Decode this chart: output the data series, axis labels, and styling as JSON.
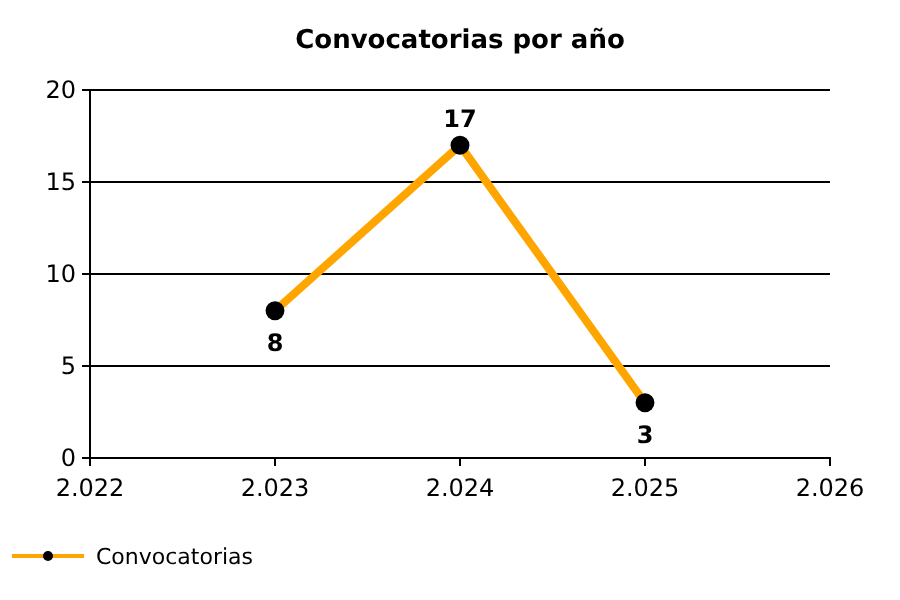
{
  "chart_data": {
    "type": "line",
    "title": "Convocatorias por año",
    "x": [
      2023,
      2024,
      2025
    ],
    "series": [
      {
        "name": "Convocatorias",
        "color": "#ffa500",
        "values": [
          8,
          17,
          3
        ]
      }
    ],
    "xlim": [
      2022,
      2026
    ],
    "xticks": [
      {
        "value": 2022,
        "label": "2.022"
      },
      {
        "value": 2023,
        "label": "2.023"
      },
      {
        "value": 2024,
        "label": "2.024"
      },
      {
        "value": 2025,
        "label": "2.025"
      },
      {
        "value": 2026,
        "label": "2.026"
      }
    ],
    "ylim": [
      0,
      20
    ],
    "yticks": [
      0,
      5,
      10,
      15,
      20
    ],
    "grid": "y",
    "legend": "bottom left",
    "marker": "circle",
    "line_style": "solid",
    "data_labels": true
  }
}
